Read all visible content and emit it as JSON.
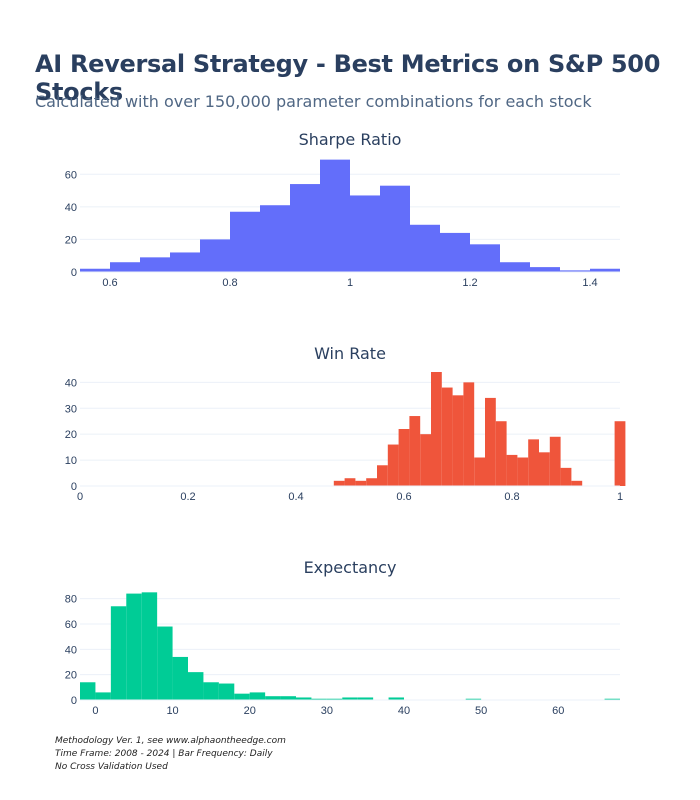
{
  "title": "AI Reversal Strategy - Best Metrics on S&P 500 Stocks",
  "subtitle": "Calculated with over 150,000 parameter combinations for each stock",
  "footer": {
    "line1": "Methodology Ver. 1, see www.alphaontheedge.com",
    "line2": "Time Frame: 2008 - 2024 | Bar Frequency: Daily",
    "line3": "No Cross Validation Used"
  },
  "chart_data": [
    {
      "type": "bar",
      "title": "Sharpe Ratio",
      "color": "#636efa",
      "xlim": [
        0.55,
        1.45
      ],
      "ylim": [
        0,
        70
      ],
      "xticks": [
        0.6,
        0.8,
        1,
        1.2,
        1.4
      ],
      "yticks": [
        0,
        20,
        40,
        60
      ],
      "bin_width": 0.05,
      "bin_starts": [
        0.55,
        0.6,
        0.65,
        0.7,
        0.75,
        0.8,
        0.85,
        0.9,
        0.95,
        1.0,
        1.05,
        1.1,
        1.15,
        1.2,
        1.25,
        1.3,
        1.35,
        1.4
      ],
      "values": [
        2,
        6,
        9,
        12,
        20,
        37,
        41,
        54,
        69,
        47,
        53,
        29,
        24,
        17,
        6,
        3,
        1,
        2
      ]
    },
    {
      "type": "bar",
      "title": "Win Rate",
      "color": "#ef553b",
      "xlim": [
        0,
        1
      ],
      "ylim": [
        0,
        44
      ],
      "xticks": [
        0,
        0.2,
        0.4,
        0.6,
        0.8,
        1
      ],
      "yticks": [
        0,
        10,
        20,
        30,
        40
      ],
      "bin_width": 0.02,
      "bin_starts": [
        0.47,
        0.49,
        0.51,
        0.53,
        0.55,
        0.57,
        0.59,
        0.61,
        0.63,
        0.65,
        0.67,
        0.69,
        0.71,
        0.73,
        0.75,
        0.77,
        0.79,
        0.81,
        0.83,
        0.85,
        0.87,
        0.89,
        0.91,
        0.99
      ],
      "values": [
        2,
        3,
        2,
        3,
        8,
        16,
        22,
        27,
        20,
        44,
        38,
        35,
        40,
        11,
        34,
        25,
        12,
        11,
        18,
        13,
        19,
        7,
        2,
        25
      ]
    },
    {
      "type": "bar",
      "title": "Expectancy",
      "color": "#00cc96",
      "xlim": [
        -2,
        68
      ],
      "ylim": [
        0,
        90
      ],
      "xticks": [
        0,
        10,
        20,
        30,
        40,
        50,
        60
      ],
      "yticks": [
        0,
        20,
        40,
        60,
        80
      ],
      "bin_width": 2,
      "bin_starts": [
        -2,
        0,
        2,
        4,
        6,
        8,
        10,
        12,
        14,
        16,
        18,
        20,
        22,
        24,
        26,
        28,
        30,
        32,
        34,
        36,
        38,
        40,
        48,
        66
      ],
      "values": [
        14,
        6,
        74,
        84,
        85,
        58,
        34,
        22,
        14,
        13,
        5,
        6,
        3,
        3,
        2,
        1,
        1,
        2,
        2,
        0,
        2,
        0,
        1,
        1
      ]
    }
  ]
}
